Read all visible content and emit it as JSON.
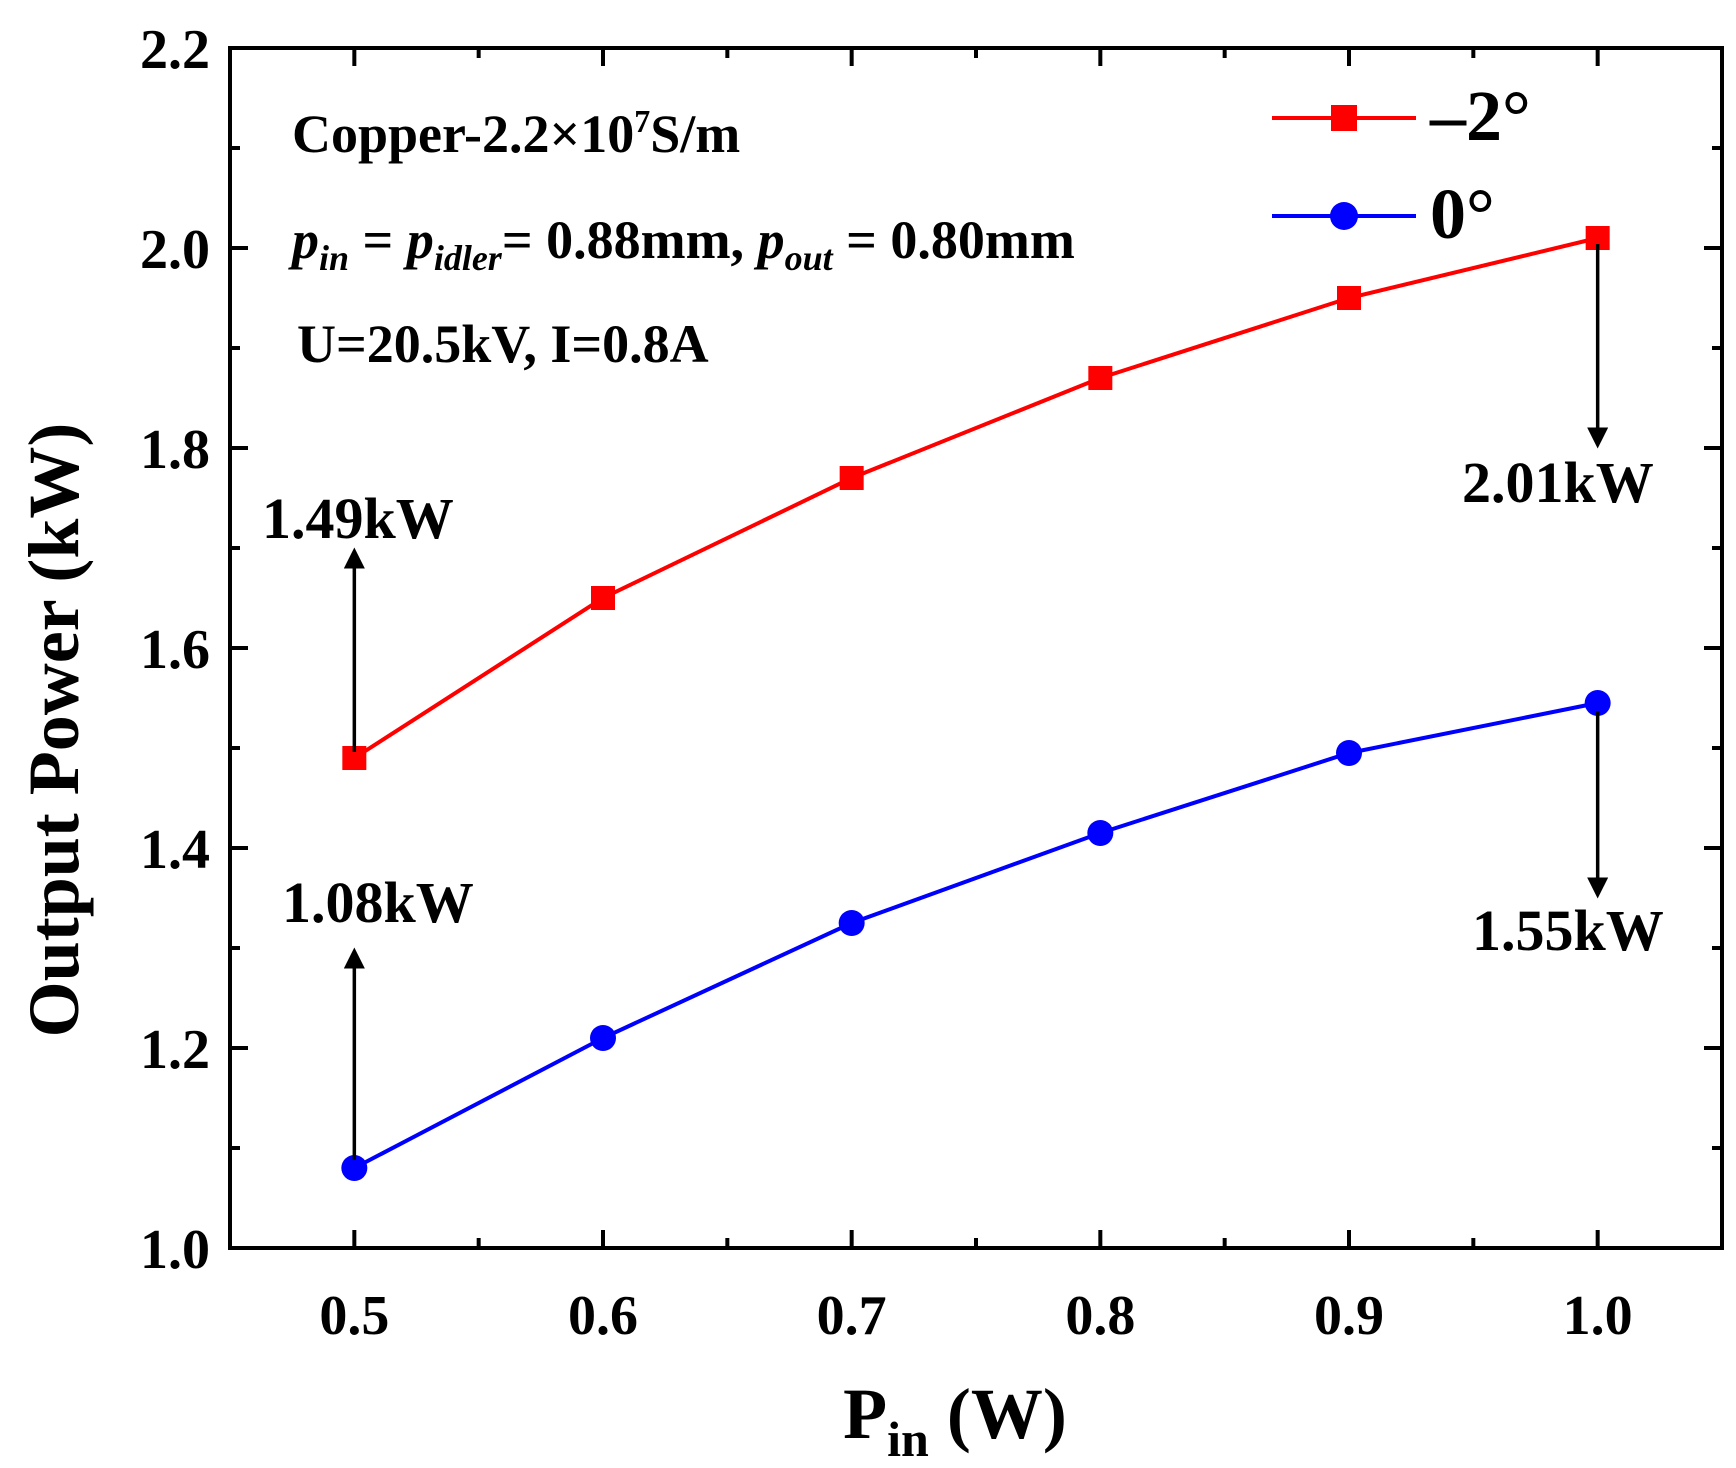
{
  "chart_data": {
    "type": "line",
    "xlabel": {
      "main": "P",
      "sub": "in",
      "unit": " (W)"
    },
    "ylabel": "Output Power (kW)",
    "xlim": [
      0.45,
      1.05
    ],
    "ylim": [
      1.0,
      2.2
    ],
    "xticks": [
      "0.5",
      "0.6",
      "0.7",
      "0.8",
      "0.9",
      "1.0"
    ],
    "yticks": [
      "1.0",
      "1.2",
      "1.4",
      "1.6",
      "1.8",
      "2.0",
      "2.2"
    ],
    "x": [
      0.5,
      0.6,
      0.7,
      0.8,
      0.9,
      1.0
    ],
    "series": [
      {
        "name": "–2°",
        "color": "#ff0000",
        "marker": "square",
        "values": [
          1.49,
          1.65,
          1.77,
          1.87,
          1.95,
          2.01
        ]
      },
      {
        "name": "0°",
        "color": "#0000ff",
        "marker": "circle",
        "values": [
          1.08,
          1.21,
          1.325,
          1.415,
          1.495,
          1.545
        ]
      }
    ],
    "legend": "top-right",
    "grid": false,
    "annotations": {
      "line1": "Copper-2.2×10",
      "line1_sup": "7",
      "line1_tail": "S/m",
      "line2": {
        "p": "p",
        "in": "in",
        "eq": " = ",
        "idler": "idler",
        "mid": "= 0.88mm, ",
        "out": "out",
        "tail": " = 0.80mm"
      },
      "line3": "U=20.5kV, I=0.8A",
      "labels": [
        "1.49kW",
        "1.08kW",
        "2.01kW",
        "1.55kW"
      ]
    }
  }
}
